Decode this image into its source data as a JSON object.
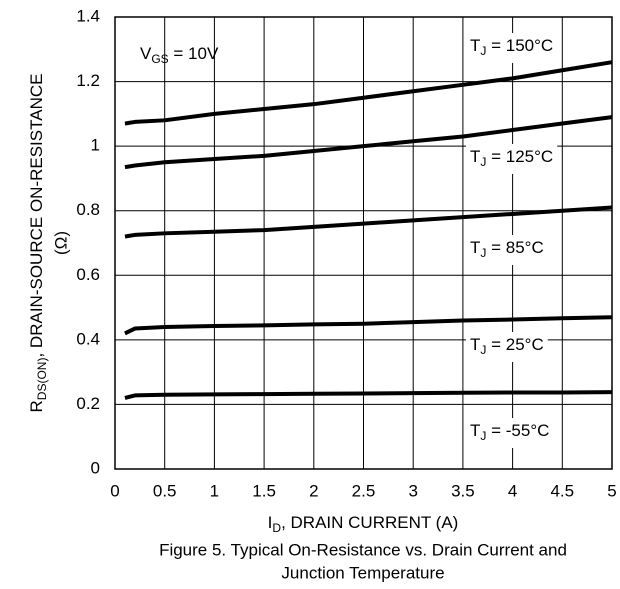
{
  "chart_data": {
    "type": "line",
    "x_label": {
      "symbol": "I",
      "subscript": "D",
      "text": ", DRAIN CURRENT (A)"
    },
    "y_label": {
      "symbol": "R",
      "subscript": "DS(ON)",
      "text": ",  DRAIN-SOURCE ON-RESISTANCE",
      "unit": "(Ω)"
    },
    "caption": [
      "Figure 5. Typical On-Resistance vs. Drain Current and",
      "Junction Temperature"
    ],
    "annotation": {
      "symbol": "V",
      "subscript": "GS",
      "text": " = 10V"
    },
    "x": [
      0.1,
      0.2,
      0.5,
      1,
      1.5,
      2,
      2.5,
      3,
      3.5,
      4,
      4.5,
      5
    ],
    "series": [
      {
        "name_parts": {
          "symbol": "T",
          "subscript": "J",
          "text": " = 150°C"
        },
        "color": "#000000",
        "values": [
          1.07,
          1.075,
          1.08,
          1.1,
          1.115,
          1.13,
          1.15,
          1.17,
          1.19,
          1.21,
          1.235,
          1.26
        ]
      },
      {
        "name_parts": {
          "symbol": "T",
          "subscript": "J",
          "text": " = 125°C"
        },
        "color": "#000000",
        "values": [
          0.935,
          0.94,
          0.95,
          0.96,
          0.97,
          0.985,
          1.0,
          1.015,
          1.03,
          1.05,
          1.07,
          1.09
        ]
      },
      {
        "name_parts": {
          "symbol": "T",
          "subscript": "J",
          "text": " = 85°C"
        },
        "color": "#000000",
        "values": [
          0.72,
          0.725,
          0.73,
          0.735,
          0.74,
          0.75,
          0.76,
          0.77,
          0.78,
          0.79,
          0.8,
          0.81
        ]
      },
      {
        "name_parts": {
          "symbol": "T",
          "subscript": "J",
          "text": " = 25°C"
        },
        "color": "#000000",
        "values": [
          0.42,
          0.435,
          0.44,
          0.443,
          0.445,
          0.448,
          0.45,
          0.455,
          0.46,
          0.463,
          0.467,
          0.47
        ]
      },
      {
        "name_parts": {
          "symbol": "T",
          "subscript": "J",
          "text": " = -55°C"
        },
        "color": "#000000",
        "values": [
          0.22,
          0.228,
          0.23,
          0.231,
          0.232,
          0.233,
          0.234,
          0.235,
          0.236,
          0.237,
          0.237,
          0.238
        ]
      }
    ],
    "xlim": [
      0,
      5
    ],
    "xticks": [
      0,
      0.5,
      1,
      1.5,
      2,
      2.5,
      3,
      3.5,
      4,
      4.5,
      5
    ],
    "ylim": [
      0,
      1.4
    ],
    "yticks": [
      0,
      0.2,
      0.4,
      0.6,
      0.8,
      1,
      1.2,
      1.4
    ],
    "grid": true
  }
}
